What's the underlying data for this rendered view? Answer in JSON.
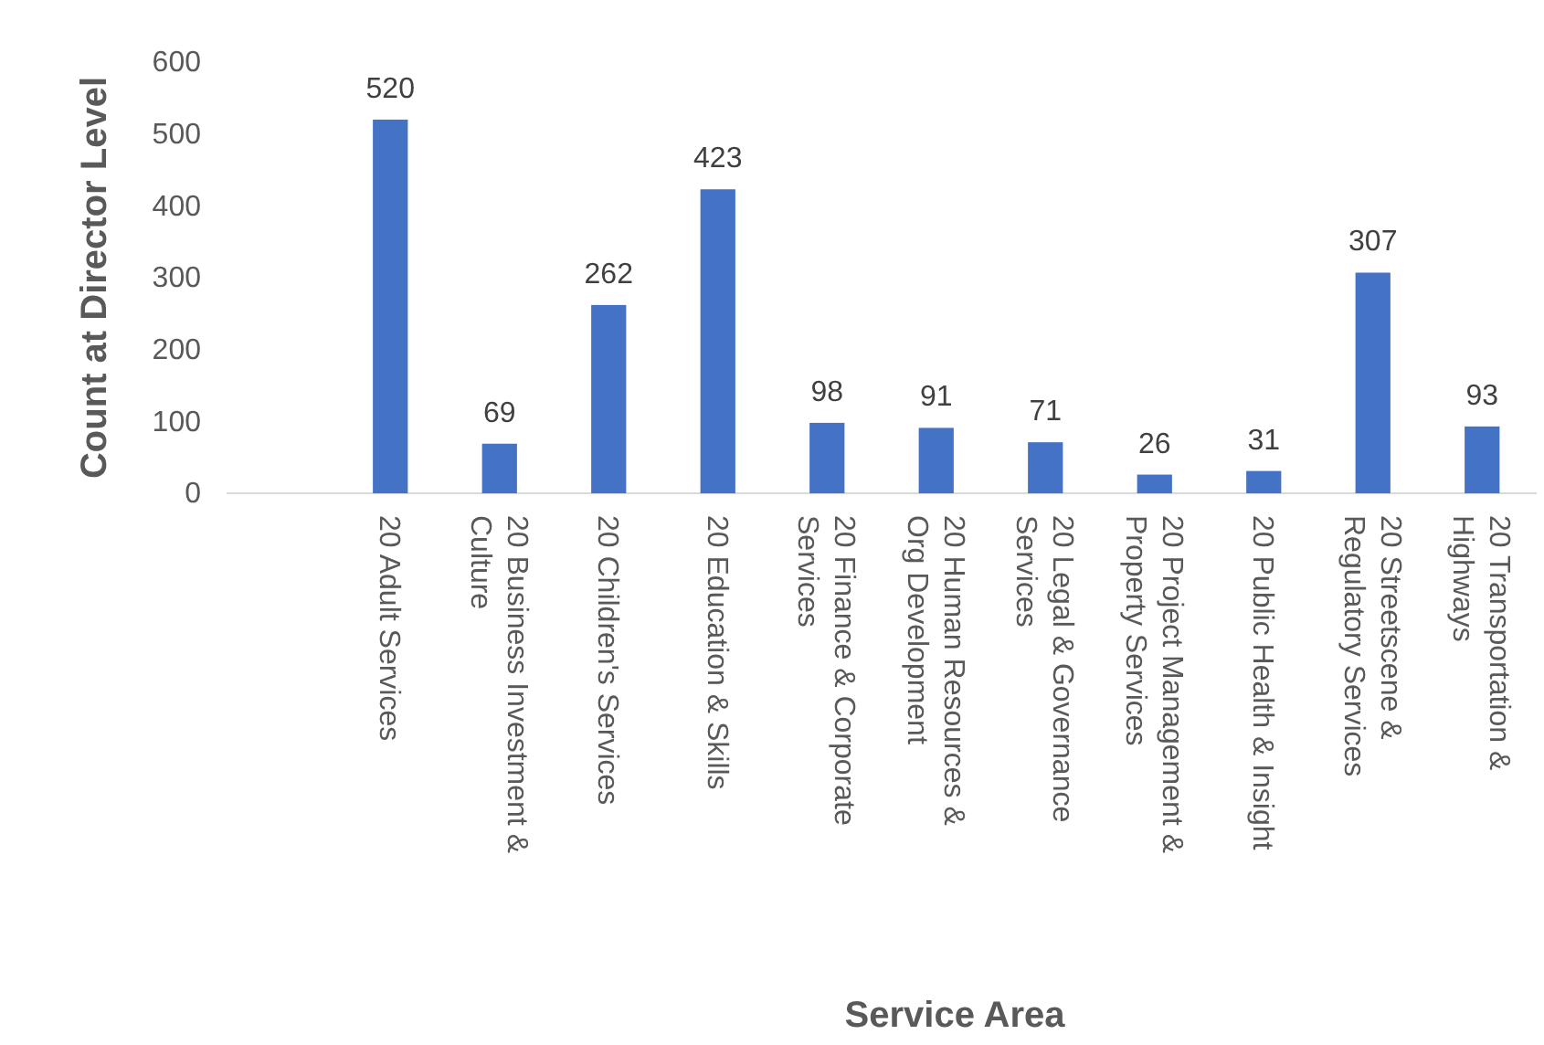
{
  "chart_data": {
    "type": "bar",
    "xlabel": "Service Area",
    "ylabel": "Count at Director Level",
    "categories": [
      null,
      "20 Adult Services",
      "20 Business Investment & Culture",
      "20 Children's Services",
      "20 Education & Skills",
      "20 Finance & Corporate Services",
      "20 Human Resources & Org Development",
      "20 Legal & Governance Services",
      "20 Project Management & Property Services",
      "20 Public Health & Insight",
      "20 Streetscene & Regulatory Services",
      "20 Transportation & Highways"
    ],
    "values": [
      null,
      520,
      69,
      262,
      423,
      98,
      91,
      71,
      26,
      31,
      307,
      93
    ],
    "color": "#4472c4",
    "ylim": [
      0,
      600
    ],
    "yticks": [
      0,
      100,
      200,
      300,
      400,
      500,
      600
    ],
    "grid": false,
    "data_labels": true
  }
}
